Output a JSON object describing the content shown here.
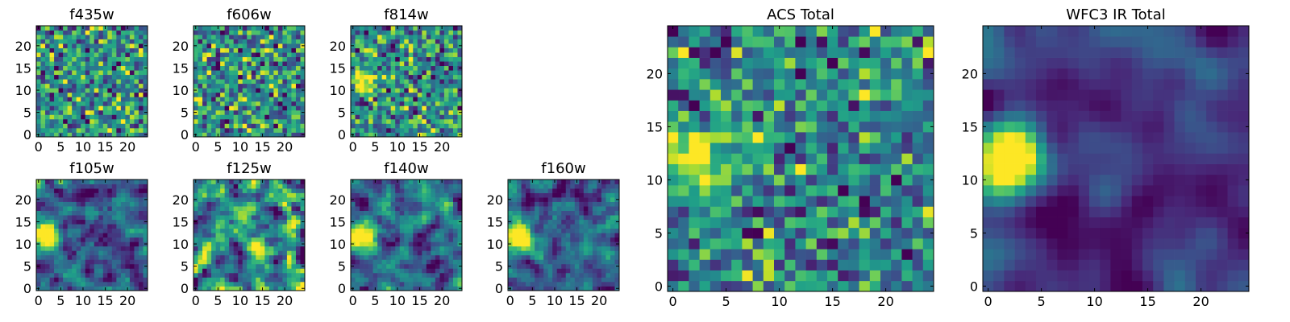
{
  "chart_data": [
    {
      "type": "heatmap",
      "title": "f435w",
      "x_ticks": [
        "0",
        "5",
        "10",
        "15",
        "20"
      ],
      "y_ticks": [
        "0",
        "5",
        "10",
        "15",
        "20"
      ],
      "xlim": [
        -0.5,
        24.5
      ],
      "ylim": [
        -0.5,
        24.5
      ],
      "grid_size": [
        25,
        25
      ],
      "colormap": "viridis",
      "texture": "pixel noise"
    },
    {
      "type": "heatmap",
      "title": "f606w",
      "x_ticks": [
        "0",
        "5",
        "10",
        "15",
        "20"
      ],
      "y_ticks": [
        "0",
        "5",
        "10",
        "15",
        "20"
      ],
      "xlim": [
        -0.5,
        24.5
      ],
      "ylim": [
        -0.5,
        24.5
      ],
      "grid_size": [
        25,
        25
      ],
      "colormap": "viridis",
      "texture": "pixel noise"
    },
    {
      "type": "heatmap",
      "title": "f814w",
      "x_ticks": [
        "0",
        "5",
        "10",
        "15",
        "20"
      ],
      "y_ticks": [
        "0",
        "5",
        "10",
        "15",
        "20"
      ],
      "xlim": [
        -0.5,
        24.5
      ],
      "ylim": [
        -0.5,
        24.5
      ],
      "grid_size": [
        25,
        25
      ],
      "colormap": "viridis",
      "texture": "pixel noise with bright source near x=2, y=12"
    },
    {
      "type": "heatmap",
      "title": "f105w",
      "x_ticks": [
        "0",
        "5",
        "10",
        "15",
        "20"
      ],
      "y_ticks": [
        "0",
        "5",
        "10",
        "15",
        "20"
      ],
      "xlim": [
        -0.5,
        24.5
      ],
      "ylim": [
        -0.5,
        24.5
      ],
      "grid_size": [
        25,
        25
      ],
      "colormap": "viridis",
      "texture": "correlated noise with bright source near x=2, y=12"
    },
    {
      "type": "heatmap",
      "title": "f125w",
      "x_ticks": [
        "0",
        "5",
        "10",
        "15",
        "20"
      ],
      "y_ticks": [
        "0",
        "5",
        "10",
        "15",
        "20"
      ],
      "xlim": [
        -0.5,
        24.5
      ],
      "ylim": [
        -0.5,
        24.5
      ],
      "grid_size": [
        25,
        25
      ],
      "colormap": "viridis",
      "texture": "correlated noise"
    },
    {
      "type": "heatmap",
      "title": "f140w",
      "x_ticks": [
        "0",
        "5",
        "10",
        "15",
        "20"
      ],
      "y_ticks": [
        "0",
        "5",
        "10",
        "15",
        "20"
      ],
      "xlim": [
        -0.5,
        24.5
      ],
      "ylim": [
        -0.5,
        24.5
      ],
      "grid_size": [
        25,
        25
      ],
      "colormap": "viridis",
      "texture": "correlated noise with bright source near x=2, y=12"
    },
    {
      "type": "heatmap",
      "title": "f160w",
      "x_ticks": [
        "0",
        "5",
        "10",
        "15",
        "20"
      ],
      "y_ticks": [
        "0",
        "5",
        "10",
        "15",
        "20"
      ],
      "xlim": [
        -0.5,
        24.5
      ],
      "ylim": [
        -0.5,
        24.5
      ],
      "grid_size": [
        25,
        25
      ],
      "colormap": "viridis",
      "texture": "correlated noise with bright source near x=2, y=12"
    },
    {
      "type": "heatmap",
      "title": "ACS Total",
      "x_ticks": [
        "0",
        "5",
        "10",
        "15",
        "20"
      ],
      "y_ticks": [
        "0",
        "5",
        "10",
        "15",
        "20"
      ],
      "xlim": [
        -0.5,
        24.5
      ],
      "ylim": [
        -0.5,
        24.5
      ],
      "grid_size": [
        25,
        25
      ],
      "colormap": "viridis",
      "texture": "pixel noise with bright source near x=2, y=12"
    },
    {
      "type": "heatmap",
      "title": "WFC3 IR Total",
      "x_ticks": [
        "0",
        "5",
        "10",
        "15",
        "20"
      ],
      "y_ticks": [
        "0",
        "5",
        "10",
        "15",
        "20"
      ],
      "xlim": [
        -0.5,
        24.5
      ],
      "ylim": [
        -0.5,
        24.5
      ],
      "grid_size": [
        25,
        25
      ],
      "colormap": "viridis",
      "texture": "smooth background with bright source near x=2, y=12"
    }
  ]
}
